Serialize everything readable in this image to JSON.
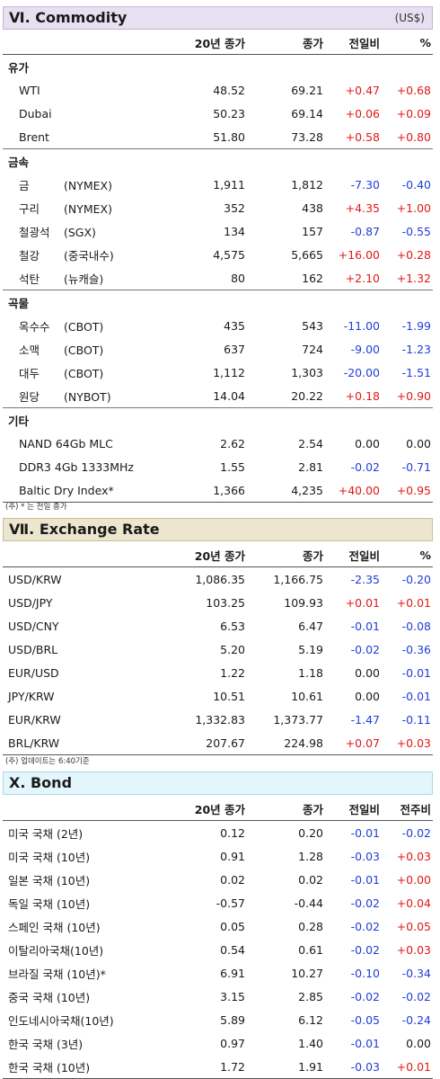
{
  "commodity": {
    "title": "Ⅵ. Commodity",
    "unit": "(US$)",
    "headers": [
      "20년 종가",
      "종가",
      "전일비",
      "%"
    ],
    "groups": [
      {
        "name": "유가",
        "rows": [
          {
            "name": "WTI",
            "exchange": "",
            "c20": "48.52",
            "close": "69.21",
            "chg": "+0.47",
            "pct": "+0.68"
          },
          {
            "name": "Dubai",
            "exchange": "",
            "c20": "50.23",
            "close": "69.14",
            "chg": "+0.06",
            "pct": "+0.09"
          },
          {
            "name": "Brent",
            "exchange": "",
            "c20": "51.80",
            "close": "73.28",
            "chg": "+0.58",
            "pct": "+0.80"
          }
        ]
      },
      {
        "name": "금속",
        "rows": [
          {
            "name": "금",
            "exchange": "(NYMEX)",
            "c20": "1,911",
            "close": "1,812",
            "chg": "-7.30",
            "pct": "-0.40"
          },
          {
            "name": "구리",
            "exchange": "(NYMEX)",
            "c20": "352",
            "close": "438",
            "chg": "+4.35",
            "pct": "+1.00"
          },
          {
            "name": "철광석",
            "exchange": "(SGX)",
            "c20": "134",
            "close": "157",
            "chg": "-0.87",
            "pct": "-0.55"
          },
          {
            "name": "철강",
            "exchange": "(중국내수)",
            "c20": "4,575",
            "close": "5,665",
            "chg": "+16.00",
            "pct": "+0.28"
          },
          {
            "name": "석탄",
            "exchange": "(뉴캐슬)",
            "c20": "80",
            "close": "162",
            "chg": "+2.10",
            "pct": "+1.32"
          }
        ]
      },
      {
        "name": "곡물",
        "rows": [
          {
            "name": "옥수수",
            "exchange": "(CBOT)",
            "c20": "435",
            "close": "543",
            "chg": "-11.00",
            "pct": "-1.99"
          },
          {
            "name": "소맥",
            "exchange": "(CBOT)",
            "c20": "637",
            "close": "724",
            "chg": "-9.00",
            "pct": "-1.23"
          },
          {
            "name": "대두",
            "exchange": "(CBOT)",
            "c20": "1,112",
            "close": "1,303",
            "chg": "-20.00",
            "pct": "-1.51"
          },
          {
            "name": "원당",
            "exchange": "(NYBOT)",
            "c20": "14.04",
            "close": "20.22",
            "chg": "+0.18",
            "pct": "+0.90"
          }
        ]
      },
      {
        "name": "기타",
        "rows": [
          {
            "name": "NAND 64Gb MLC",
            "exchange": "",
            "c20": "2.62",
            "close": "2.54",
            "chg": "0.00",
            "pct": "0.00"
          },
          {
            "name": "DDR3 4Gb 1333MHz",
            "exchange": "",
            "c20": "1.55",
            "close": "2.81",
            "chg": "-0.02",
            "pct": "-0.71"
          },
          {
            "name": "Baltic Dry Index*",
            "exchange": "",
            "c20": "1,366",
            "close": "4,235",
            "chg": "+40.00",
            "pct": "+0.95"
          }
        ]
      }
    ],
    "note": "(주) * 는 전일 종가"
  },
  "exchange": {
    "title": "Ⅶ. Exchange Rate",
    "headers": [
      "20년 종가",
      "종가",
      "전일비",
      "%"
    ],
    "rows": [
      {
        "name": "USD/KRW",
        "c20": "1,086.35",
        "close": "1,166.75",
        "chg": "-2.35",
        "pct": "-0.20"
      },
      {
        "name": "USD/JPY",
        "c20": "103.25",
        "close": "109.93",
        "chg": "+0.01",
        "pct": "+0.01"
      },
      {
        "name": "USD/CNY",
        "c20": "6.53",
        "close": "6.47",
        "chg": "-0.01",
        "pct": "-0.08"
      },
      {
        "name": "USD/BRL",
        "c20": "5.20",
        "close": "5.19",
        "chg": "-0.02",
        "pct": "-0.36"
      },
      {
        "name": "EUR/USD",
        "c20": "1.22",
        "close": "1.18",
        "chg": "0.00",
        "pct": "-0.01"
      },
      {
        "name": "JPY/KRW",
        "c20": "10.51",
        "close": "10.61",
        "chg": "0.00",
        "pct": "-0.01"
      },
      {
        "name": "EUR/KRW",
        "c20": "1,332.83",
        "close": "1,373.77",
        "chg": "-1.47",
        "pct": "-0.11"
      },
      {
        "name": "BRL/KRW",
        "c20": "207.67",
        "close": "224.98",
        "chg": "+0.07",
        "pct": "+0.03"
      }
    ],
    "note": "(주) 업데이트는 6:40기준"
  },
  "bond": {
    "title": "Ⅹ. Bond",
    "headers": [
      "20년 종가",
      "종가",
      "전일비",
      "전주비"
    ],
    "rows": [
      {
        "name": "미국 국채 (2년)",
        "c20": "0.12",
        "close": "0.20",
        "chg": "-0.01",
        "wk": "-0.02"
      },
      {
        "name": "미국 국채 (10년)",
        "c20": "0.91",
        "close": "1.28",
        "chg": "-0.03",
        "wk": "+0.03"
      },
      {
        "name": "일본 국채 (10년)",
        "c20": "0.02",
        "close": "0.02",
        "chg": "-0.01",
        "wk": "+0.00"
      },
      {
        "name": "독일 국채 (10년)",
        "c20": "-0.57",
        "close": "-0.44",
        "chg": "-0.02",
        "wk": "+0.04"
      },
      {
        "name": "스페인 국채 (10년)",
        "c20": "0.05",
        "close": "0.28",
        "chg": "-0.02",
        "wk": "+0.05"
      },
      {
        "name": "이탈리아국채(10년)",
        "c20": "0.54",
        "close": "0.61",
        "chg": "-0.02",
        "wk": "+0.03"
      },
      {
        "name": "브라질 국채 (10년)*",
        "c20": "6.91",
        "close": "10.27",
        "chg": "-0.10",
        "wk": "-0.34"
      },
      {
        "name": "중국 국채 (10년)",
        "c20": "3.15",
        "close": "2.85",
        "chg": "-0.02",
        "wk": "-0.02"
      },
      {
        "name": "인도네시아국채(10년)",
        "c20": "5.89",
        "close": "6.12",
        "chg": "-0.05",
        "wk": "-0.24"
      },
      {
        "name": "한국 국채 (3년)",
        "c20": "0.97",
        "close": "1.40",
        "chg": "-0.01",
        "wk": "0.00"
      },
      {
        "name": "한국 국채 (10년)",
        "c20": "1.72",
        "close": "1.91",
        "chg": "-0.03",
        "wk": "+0.01"
      }
    ]
  },
  "colors": {
    "positive": "#e01818",
    "negative": "#1f3fd8",
    "neutral": "#1a1a1a"
  }
}
